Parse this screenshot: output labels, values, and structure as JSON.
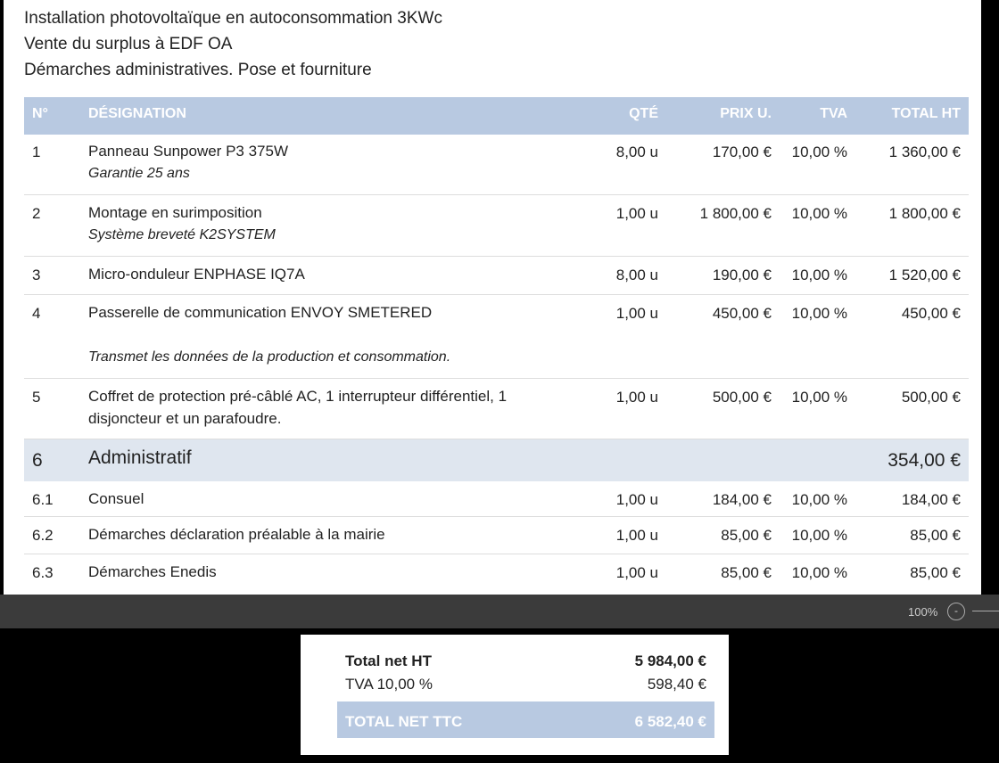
{
  "intro": [
    "Installation photovoltaïque en autoconsommation 3KWc",
    "Vente du surplus à EDF OA",
    "Démarches administratives. Pose et fourniture"
  ],
  "table": {
    "headers": [
      "N°",
      "DÉSIGNATION",
      "QTÉ",
      "PRIX U.",
      "TVA",
      "TOTAL HT"
    ],
    "rows": [
      {
        "no": "1",
        "designation": "Panneau Sunpower P3 375W",
        "note": "Garantie 25 ans",
        "qty": "8,00 u",
        "price": "170,00 €",
        "tva": "10,00 %",
        "total": "1 360,00 €"
      },
      {
        "no": "2",
        "designation": "Montage en surimposition",
        "note": "Système breveté K2SYSTEM",
        "qty": "1,00 u",
        "price": "1 800,00 €",
        "tva": "10,00 %",
        "total": "1 800,00 €"
      },
      {
        "no": "3",
        "designation": "Micro-onduleur ENPHASE IQ7A",
        "qty": "8,00 u",
        "price": "190,00 €",
        "tva": "10,00 %",
        "total": "1 520,00 €"
      },
      {
        "no": "4",
        "designation": "Passerelle de communication  ENVOY SMETERED",
        "note": "Transmet les données de la production et consommation.",
        "qty": "1,00 u",
        "price": "450,00 €",
        "tva": "10,00 %",
        "total": "450,00 €"
      },
      {
        "no": "5",
        "designation": "Coffret de protection pré-câblé AC, 1 interrupteur différentiel, 1 disjoncteur et un parafoudre.",
        "qty": "1,00 u",
        "price": "500,00 €",
        "tva": "10,00 %",
        "total": "500,00 €"
      },
      {
        "no": "6",
        "designation": "Administratif",
        "total": "354,00 €",
        "section": true
      },
      {
        "no": "6.1",
        "designation": "Consuel",
        "qty": "1,00 u",
        "price": "184,00 €",
        "tva": "10,00 %",
        "total": "184,00 €"
      },
      {
        "no": "6.2",
        "designation": "Démarches déclaration préalable à la mairie",
        "qty": "1,00 u",
        "price": "85,00 €",
        "tva": "10,00 %",
        "total": "85,00 €"
      },
      {
        "no": "6.3",
        "designation": "Démarches Enedis",
        "qty": "1,00 u",
        "price": "85,00 €",
        "tva": "10,00 %",
        "total": "85,00 €"
      }
    ]
  },
  "zoom": "100%",
  "totals": [
    {
      "label": "Total net HT",
      "value": "5 984,00 €"
    },
    {
      "label": "TVA 10,00 %",
      "value": "598,40 €"
    },
    {
      "label": "TOTAL NET TTC",
      "value": "6 582,40 €"
    }
  ]
}
